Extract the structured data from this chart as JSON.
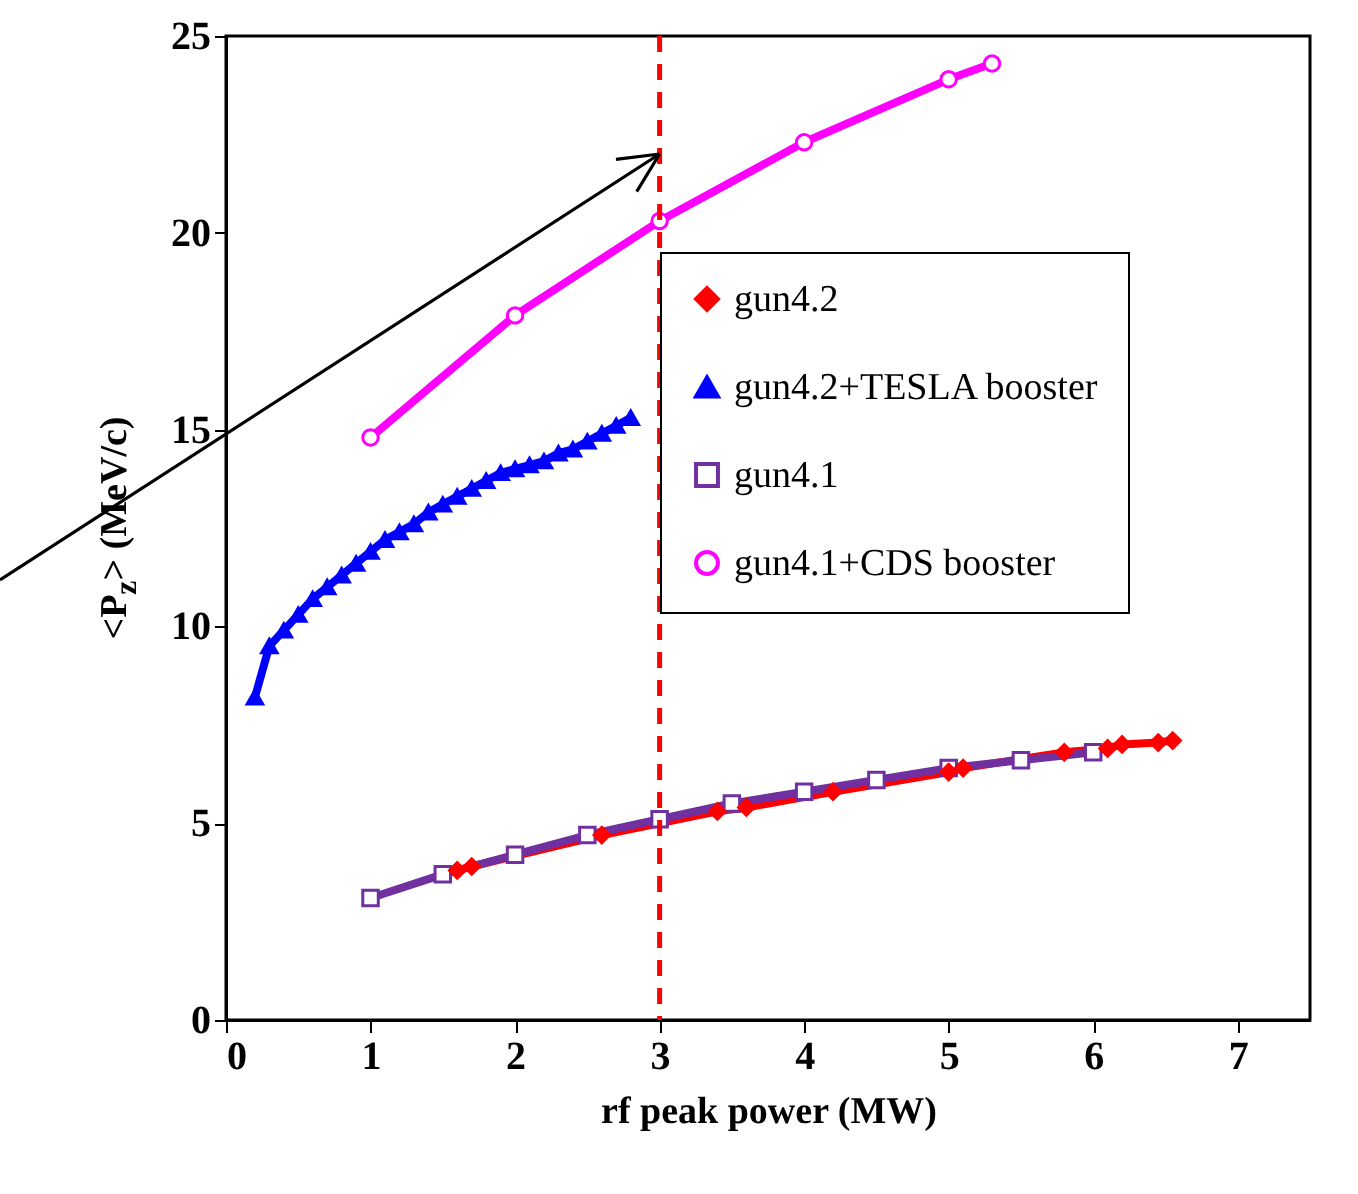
{
  "chart_data": {
    "type": "line",
    "xlabel": "rf peak power (MW)",
    "ylabel": "<P$_{z}$> (MeV/c)",
    "xlim": [
      0,
      7.5
    ],
    "ylim": [
      0,
      25
    ],
    "xticks": [
      0,
      1,
      2,
      3,
      4,
      5,
      6,
      7
    ],
    "yticks": [
      0,
      5,
      10,
      15,
      20,
      25
    ],
    "grid": false,
    "legend": "right",
    "line_style": "solid",
    "ref_lines": [
      {
        "axis": "x",
        "value": 3,
        "color": "#ff0000",
        "line_style": "dashed"
      }
    ],
    "series": [
      {
        "name": "gun4.2",
        "color": "#ff0000",
        "marker": "diamond",
        "x": [
          1.6,
          1.7,
          2.6,
          3.4,
          3.6,
          4.2,
          5,
          5.1,
          5.8,
          6.1,
          6.2,
          6.45,
          6.55
        ],
        "values": [
          3.8,
          3.9,
          4.7,
          5.3,
          5.4,
          5.8,
          6.3,
          6.4,
          6.8,
          6.9,
          7.0,
          7.05,
          7.1
        ]
      },
      {
        "name": "gun4.2+TESLA booster",
        "color": "#0000ff",
        "marker": "triangle",
        "x": [
          0.2,
          0.3,
          0.4,
          0.5,
          0.6,
          0.7,
          0.8,
          0.9,
          1.0,
          1.1,
          1.2,
          1.3,
          1.4,
          1.5,
          1.6,
          1.7,
          1.8,
          1.9,
          2.0,
          2.1,
          2.2,
          2.3,
          2.4,
          2.5,
          2.6,
          2.7,
          2.8
        ],
        "values": [
          8.2,
          9.5,
          9.9,
          10.3,
          10.7,
          11.0,
          11.3,
          11.6,
          11.9,
          12.2,
          12.4,
          12.6,
          12.9,
          13.1,
          13.3,
          13.5,
          13.7,
          13.9,
          14.0,
          14.1,
          14.2,
          14.4,
          14.5,
          14.7,
          14.9,
          15.1,
          15.3
        ]
      },
      {
        "name": "gun4.1",
        "color": "#7030a0",
        "marker": "square",
        "x": [
          1,
          1.5,
          2,
          2.5,
          3,
          3.5,
          4,
          4.5,
          5,
          5.5,
          6
        ],
        "values": [
          3.1,
          3.7,
          4.2,
          4.7,
          5.1,
          5.5,
          5.8,
          6.1,
          6.4,
          6.6,
          6.8
        ]
      },
      {
        "name": "gun4.1+CDS booster",
        "color": "#ff00ff",
        "marker": "circle",
        "x": [
          1,
          2,
          3,
          4,
          5,
          5.3
        ],
        "values": [
          14.8,
          17.9,
          20.3,
          22.3,
          23.9,
          24.3
        ]
      }
    ]
  }
}
